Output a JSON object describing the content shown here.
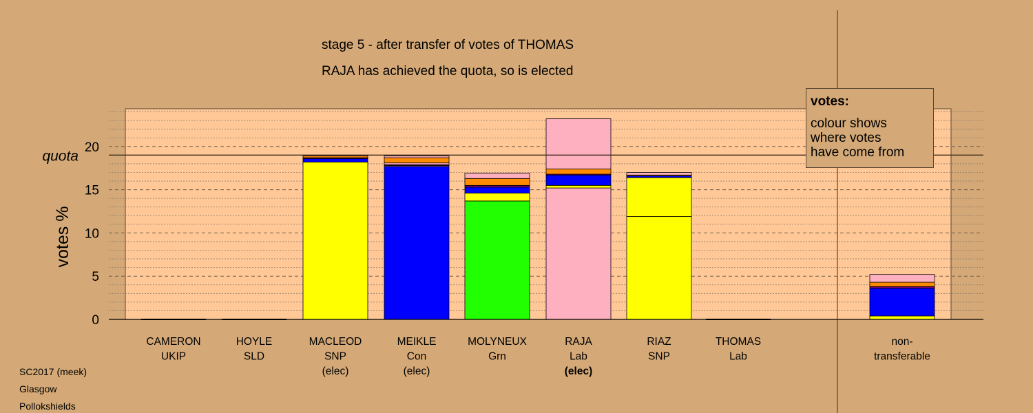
{
  "header": {
    "title": "stage 5 - after transfer of votes of THOMAS",
    "subtitle": "RAJA has achieved the quota, so is elected"
  },
  "legend": {
    "title": "votes:",
    "lines": [
      "colour shows",
      "where votes",
      "have come from"
    ]
  },
  "footer": {
    "lines": [
      "SC2017 (meek)",
      "Glasgow",
      "Pollokshields"
    ]
  },
  "colors": {
    "background": "#D4A977",
    "plot_area": "#FFC896",
    "UKIP": "#800080",
    "SLD": "#FF8C00",
    "SNP": "#FFFF00",
    "Con": "#0000FF",
    "Grn": "#22FF00",
    "Lab": "#FFB0C0"
  },
  "chart_data": {
    "type": "bar",
    "stacked": true,
    "ylabel": "votes %",
    "ylim": [
      0,
      24.4
    ],
    "yticks": [
      0,
      5,
      10,
      15,
      20
    ],
    "quota": 19,
    "quota_label": "quota",
    "grid": true,
    "categories": [
      {
        "name": "CAMERON",
        "party": "UKIP",
        "status": ""
      },
      {
        "name": "HOYLE",
        "party": "SLD",
        "status": ""
      },
      {
        "name": "MACLEOD",
        "party": "SNP",
        "status": "(elec)"
      },
      {
        "name": "MEIKLE",
        "party": "Con",
        "status": "(elec)"
      },
      {
        "name": "MOLYNEUX",
        "party": "Grn",
        "status": ""
      },
      {
        "name": "RAJA",
        "party": "Lab",
        "status": "(elec)"
      },
      {
        "name": "RIAZ",
        "party": "SNP",
        "status": ""
      },
      {
        "name": "THOMAS",
        "party": "Lab",
        "status": ""
      },
      {
        "name": "non-",
        "party": "transferable",
        "status": ""
      }
    ],
    "bars": [
      [],
      [],
      [
        {
          "from": "SNP",
          "value": 18.2
        },
        {
          "from": "Con",
          "value": 0.4
        },
        {
          "from": "UKIP",
          "value": 0.1
        },
        {
          "from": "SLD",
          "value": 0.2
        },
        {
          "from": "Lab",
          "value": 0.1
        }
      ],
      [
        {
          "from": "Con",
          "value": 17.7
        },
        {
          "from": "Lab",
          "value": 0.1
        },
        {
          "from": "UKIP",
          "value": 0.1
        },
        {
          "from": "Lab",
          "value": 0.2
        },
        {
          "from": "SLD",
          "value": 0.6
        },
        {
          "from": "Lab",
          "value": 0.2
        }
      ],
      [
        {
          "from": "Grn",
          "value": 13.7
        },
        {
          "from": "SNP",
          "value": 0.9
        },
        {
          "from": "Con",
          "value": 0.7
        },
        {
          "from": "UKIP",
          "value": 0.2
        },
        {
          "from": "SLD",
          "value": 0.8
        },
        {
          "from": "Lab",
          "value": 0.6
        }
      ],
      [
        {
          "from": "Lab",
          "value": 15.2
        },
        {
          "from": "SNP",
          "value": 0.3
        },
        {
          "from": "Con",
          "value": 1.2
        },
        {
          "from": "UKIP",
          "value": 0.1
        },
        {
          "from": "SLD",
          "value": 0.6
        },
        {
          "from": "Lab",
          "value": 5.8
        }
      ],
      [
        {
          "from": "SNP",
          "value": 11.9
        },
        {
          "from": "SNP",
          "value": 4.5
        },
        {
          "from": "Con",
          "value": 0.2
        },
        {
          "from": "SLD",
          "value": 0.1
        },
        {
          "from": "Lab",
          "value": 0.3
        }
      ],
      [],
      [
        {
          "from": "SNP",
          "value": 0.4
        },
        {
          "from": "Con",
          "value": 3.2
        },
        {
          "from": "UKIP",
          "value": 0.2
        },
        {
          "from": "SLD",
          "value": 0.5
        },
        {
          "from": "Lab",
          "value": 0.9
        }
      ]
    ]
  }
}
